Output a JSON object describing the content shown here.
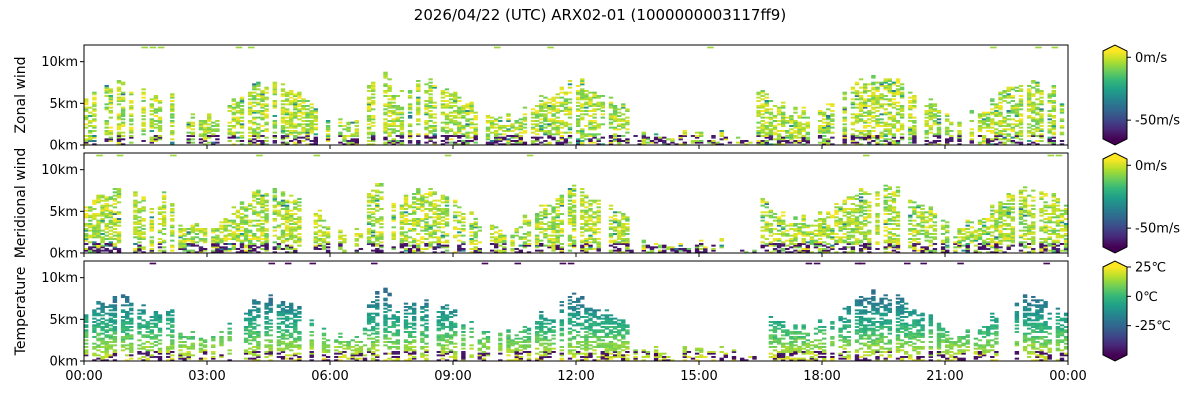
{
  "figure": {
    "title": "2026/04/22 (UTC) ARX02-01 (1000000003117ff9)"
  },
  "colors": {
    "colormap": "viridis",
    "viridis_stops": [
      "#440154",
      "#482878",
      "#3e4989",
      "#31688e",
      "#26828e",
      "#1f9e89",
      "#35b779",
      "#6ece58",
      "#b5de2b",
      "#fde725"
    ],
    "missing": "#ffffff"
  },
  "chart_data": [
    {
      "type": "heatmap",
      "ylabel": "Zonal wind",
      "x_range_hours": [
        0,
        24
      ],
      "x_ticks": [
        "00:00",
        "03:00",
        "06:00",
        "09:00",
        "12:00",
        "15:00",
        "18:00",
        "21:00",
        "00:00"
      ],
      "x_tick_hours": [
        0,
        3,
        6,
        9,
        12,
        15,
        18,
        21,
        24
      ],
      "y_range_km": [
        0,
        12
      ],
      "y_ticks": [
        "0km",
        "5km",
        "10km"
      ],
      "y_tick_km": [
        0,
        5,
        10
      ],
      "colorbar": {
        "min": -65,
        "max": 5,
        "ticks": [
          "0m/s",
          "-50m/s"
        ],
        "tick_values": [
          0,
          -50
        ],
        "extend": "both"
      }
    },
    {
      "type": "heatmap",
      "ylabel": "Meridional wind",
      "x_range_hours": [
        0,
        24
      ],
      "x_ticks": [
        "00:00",
        "03:00",
        "06:00",
        "09:00",
        "12:00",
        "15:00",
        "18:00",
        "21:00",
        "00:00"
      ],
      "x_tick_hours": [
        0,
        3,
        6,
        9,
        12,
        15,
        18,
        21,
        24
      ],
      "y_range_km": [
        0,
        12
      ],
      "y_ticks": [
        "0km",
        "5km",
        "10km"
      ],
      "y_tick_km": [
        0,
        5,
        10
      ],
      "colorbar": {
        "min": -65,
        "max": 5,
        "ticks": [
          "0m/s",
          "-50m/s"
        ],
        "tick_values": [
          0,
          -50
        ],
        "extend": "both"
      }
    },
    {
      "type": "heatmap",
      "ylabel": "Temperature",
      "x_range_hours": [
        0,
        24
      ],
      "x_ticks": [
        "00:00",
        "03:00",
        "06:00",
        "09:00",
        "12:00",
        "15:00",
        "18:00",
        "21:00",
        "00:00"
      ],
      "x_tick_hours": [
        0,
        3,
        6,
        9,
        12,
        15,
        18,
        21,
        24
      ],
      "y_range_km": [
        0,
        12
      ],
      "y_ticks": [
        "0km",
        "5km",
        "10km"
      ],
      "y_tick_km": [
        0,
        5,
        10
      ],
      "colorbar": {
        "min": -50,
        "max": 25,
        "ticks": [
          "25℃",
          "0℃",
          "-25℃"
        ],
        "tick_values": [
          25,
          0,
          -25
        ],
        "extend": "both"
      }
    }
  ]
}
